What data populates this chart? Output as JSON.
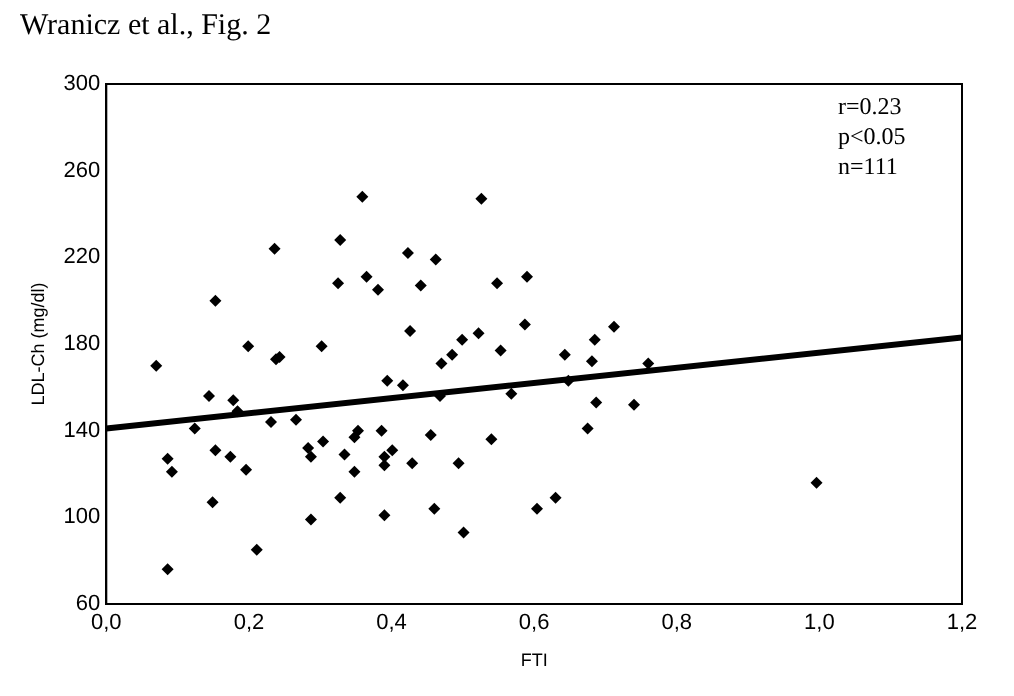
{
  "chart_data": {
    "type": "scatter",
    "title": "Wranicz et al., Fig. 2",
    "xlabel": "FTI",
    "ylabel": "LDL-Ch (mg/dl)",
    "annotations": [
      "r=0.23",
      "p<0.05",
      "n=111"
    ],
    "xlim": [
      0,
      1.2
    ],
    "xticks": [
      {
        "value": 0,
        "label": "0,0"
      },
      {
        "value": 0.2,
        "label": "0,2"
      },
      {
        "value": 0.4,
        "label": "0,4"
      },
      {
        "value": 0.6,
        "label": "0,6"
      },
      {
        "value": 0.8,
        "label": "0,8"
      },
      {
        "value": 1.0,
        "label": "1,0"
      },
      {
        "value": 1.2,
        "label": "1,2"
      }
    ],
    "ylim": [
      60,
      300
    ],
    "yticks": [
      60,
      100,
      140,
      180,
      220,
      260,
      300
    ],
    "grid": false,
    "legend": false,
    "series": [
      {
        "color": "#000000",
        "marker": "diamond",
        "x": [
          0.07,
          0.086,
          0.092,
          0.086,
          0.124,
          0.144,
          0.153,
          0.153,
          0.149,
          0.174,
          0.178,
          0.184,
          0.196,
          0.211,
          0.199,
          0.236,
          0.238,
          0.243,
          0.231,
          0.266,
          0.283,
          0.287,
          0.287,
          0.302,
          0.304,
          0.325,
          0.328,
          0.359,
          0.328,
          0.334,
          0.348,
          0.348,
          0.353,
          0.365,
          0.381,
          0.386,
          0.39,
          0.39,
          0.39,
          0.394,
          0.401,
          0.526,
          0.423,
          0.462,
          0.441,
          0.548,
          0.59,
          0.426,
          0.587,
          0.499,
          0.522,
          0.485,
          0.47,
          0.553,
          0.712,
          0.685,
          0.643,
          0.681,
          0.416,
          0.468,
          0.568,
          0.648,
          0.687,
          0.74,
          0.675,
          0.455,
          0.54,
          0.429,
          0.494,
          0.46,
          0.501,
          0.604,
          0.63,
          0.76,
          0.996
        ],
        "values": [
          170,
          127,
          121,
          76,
          141,
          156,
          200,
          131,
          107,
          128,
          154,
          149,
          122,
          85,
          179,
          224,
          173,
          174,
          144,
          145,
          132,
          128,
          99,
          179,
          135,
          208,
          228,
          248,
          109,
          129,
          121,
          137,
          140,
          211,
          205,
          140,
          128,
          124,
          101,
          163,
          131,
          247,
          222,
          219,
          207,
          208,
          211,
          186,
          189,
          182,
          185,
          175,
          171,
          177,
          188,
          182,
          175,
          172,
          161,
          156,
          157,
          163,
          153,
          152,
          141,
          138,
          136,
          125,
          125,
          104,
          93,
          104,
          109,
          171,
          116
        ]
      },
      {
        "type": "line",
        "marker": "none",
        "color": "#000000",
        "x": [
          0,
          1.2
        ],
        "values": [
          141,
          183
        ]
      }
    ]
  }
}
